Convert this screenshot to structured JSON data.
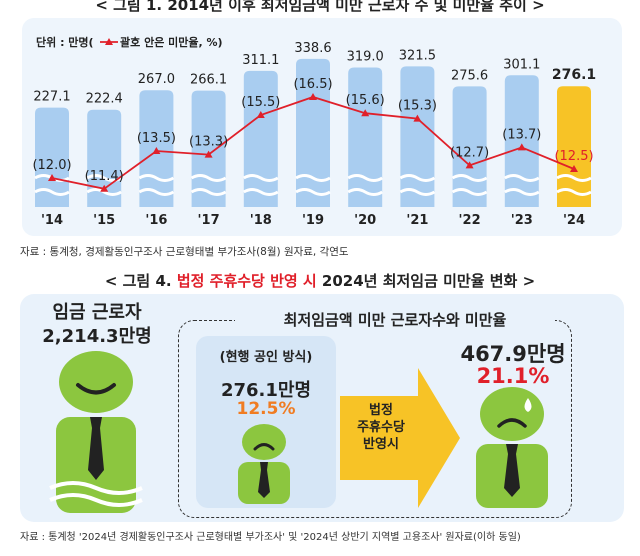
{
  "figure1": {
    "title": "< 그림 1. 2014년 이후 최저임금액 미만 근로자 수 및 미만율 추이 >",
    "legend_unit": "단위 : 만명(",
    "legend_series": "괄호 안은 미만율, %)",
    "source": "자료 : 통계청, 경제활동인구조사 근로형태별 부가조사(8월) 원자료, 각연도"
  },
  "chart_data": {
    "type": "bar",
    "title": "",
    "categories": [
      "'14",
      "'15",
      "'16",
      "'17",
      "'18",
      "'19",
      "'20",
      "'21",
      "'22",
      "'23",
      "'24"
    ],
    "series": [
      {
        "values": [
          227.1,
          222.4,
          267.0,
          266.1,
          311.1,
          338.6,
          319.0,
          321.5,
          275.6,
          301.1,
          276.1
        ]
      },
      {
        "name": "괄호 안은 미만율",
        "values": [
          12.0,
          11.4,
          13.5,
          13.3,
          15.5,
          16.5,
          15.6,
          15.3,
          12.7,
          13.7,
          12.5
        ]
      }
    ],
    "value_labels": [
      "227.1",
      "222.4",
      "267.0",
      "266.1",
      "311.1",
      "338.6",
      "319.0",
      "321.5",
      "275.6",
      "301.1",
      "276.1"
    ],
    "rate_labels": [
      "(12.0)",
      "(11.4)",
      "(13.5)",
      "(13.3)",
      "(15.5)",
      "(16.5)",
      "(15.6)",
      "(15.3)",
      "(12.7)",
      "(13.7)",
      "(12.5)"
    ],
    "highlight_index": 10,
    "colors": {
      "bar": "#a9cdf0",
      "bar_highlight": "#f7c326",
      "line": "#e0202a",
      "rate_highlight": "#e0202a"
    }
  },
  "figure4": {
    "title_prefix": "< 그림 4. ",
    "title_red": "법정 주휴수당 반영 시",
    "title_suffix": " 2024년 최저임금 미만율 변화 >",
    "workers_label": "임금 근로자",
    "workers_value": "2,214.3만명",
    "box_title": "최저임금액 미만 근로자수와 미만율",
    "current_method": "(현행 공인 방식)",
    "current_count": "276.1만명",
    "current_rate": "12.5%",
    "arrow_line1": "법정",
    "arrow_line2": "주휴수당",
    "arrow_line3": "반영시",
    "new_count": "467.9만명",
    "new_rate": "21.1%",
    "source": "자료 : 통계청 '2024년 경제활동인구조사 근로형태별 부가조사' 및 '2024년 상반기 지역별 고용조사' 원자료(이하 동일)",
    "colors": {
      "figure_green": "#8cc63f",
      "orange": "#f07c22",
      "red": "#e0202a",
      "arrow": "#f7c326"
    }
  }
}
